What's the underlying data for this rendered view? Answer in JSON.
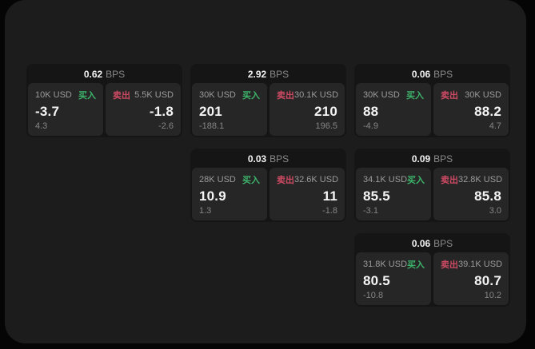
{
  "page": {
    "background": "#050505",
    "panel_background": "#1c1c1c"
  },
  "colors": {
    "card_background": "#151515",
    "cell_background": "#262626",
    "buy_accent": "#3cb46a",
    "sell_accent": "#cc4a63",
    "value_text": "#f5f5f5",
    "label_text": "#9b9b9b"
  },
  "labels": {
    "bps_unit": "BPS",
    "buy": "买入",
    "sell": "卖出"
  },
  "cards": [
    {
      "bps": "0.62",
      "row": 1,
      "col": 1,
      "buy": {
        "amount": "10K USD",
        "price": "-3.7",
        "delta": "4.3"
      },
      "sell": {
        "amount": "5.5K USD",
        "price": "-1.8",
        "delta": "-2.6"
      }
    },
    {
      "bps": "2.92",
      "row": 1,
      "col": 2,
      "buy": {
        "amount": "30K USD",
        "price": "201",
        "delta": "-188.1"
      },
      "sell": {
        "amount": "30.1K USD",
        "price": "210",
        "delta": "196.5"
      }
    },
    {
      "bps": "0.06",
      "row": 1,
      "col": 3,
      "buy": {
        "amount": "30K USD",
        "price": "88",
        "delta": "-4.9"
      },
      "sell": {
        "amount": "30K USD",
        "price": "88.2",
        "delta": "4.7"
      }
    },
    {
      "bps": "0.03",
      "row": 2,
      "col": 2,
      "buy": {
        "amount": "28K USD",
        "price": "10.9",
        "delta": "1.3"
      },
      "sell": {
        "amount": "32.6K USD",
        "price": "11",
        "delta": "-1.8"
      }
    },
    {
      "bps": "0.09",
      "row": 2,
      "col": 3,
      "buy": {
        "amount": "34.1K USD",
        "price": "85.5",
        "delta": "-3.1"
      },
      "sell": {
        "amount": "32.8K USD",
        "price": "85.8",
        "delta": "3.0"
      }
    },
    {
      "bps": "0.06",
      "row": 3,
      "col": 3,
      "buy": {
        "amount": "31.8K USD",
        "price": "80.5",
        "delta": "-10.8"
      },
      "sell": {
        "amount": "39.1K USD",
        "price": "80.7",
        "delta": "10.2"
      }
    }
  ]
}
